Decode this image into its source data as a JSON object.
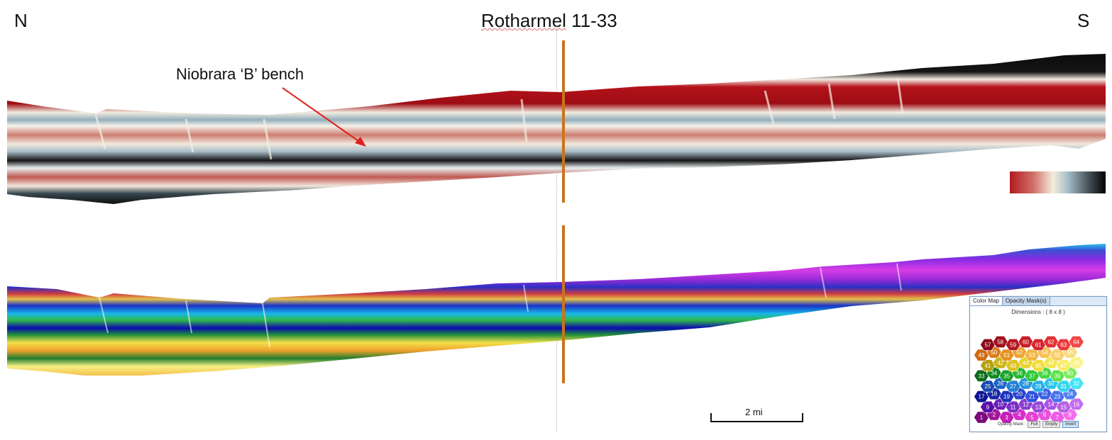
{
  "header": {
    "left_label": "N",
    "right_label": "S",
    "well_name_part1": "Rotharmel",
    "well_name_part2": " 11-33"
  },
  "annotation": {
    "bench_label": "Niobrara ‘B’ bench"
  },
  "scale_bar": {
    "label": "2 mi"
  },
  "colormap_widget": {
    "tab_color_map": "Color Map",
    "tab_opacity": "Opacity Mask(s)",
    "dimensions": "Dimensions : ( 8 x 8 )",
    "opacity_label": "Opacity Mask :",
    "btn_full": "Full",
    "btn_empty": "Empty",
    "btn_invert": "Invert"
  },
  "colors": {
    "seismic_red": "#b4121a",
    "seismic_light": "#f2ece0",
    "seismic_steel": "#9fb5c3",
    "seismic_black": "#0c0c0c",
    "well_line": "#c8741c",
    "arrow": "#e0201e"
  }
}
